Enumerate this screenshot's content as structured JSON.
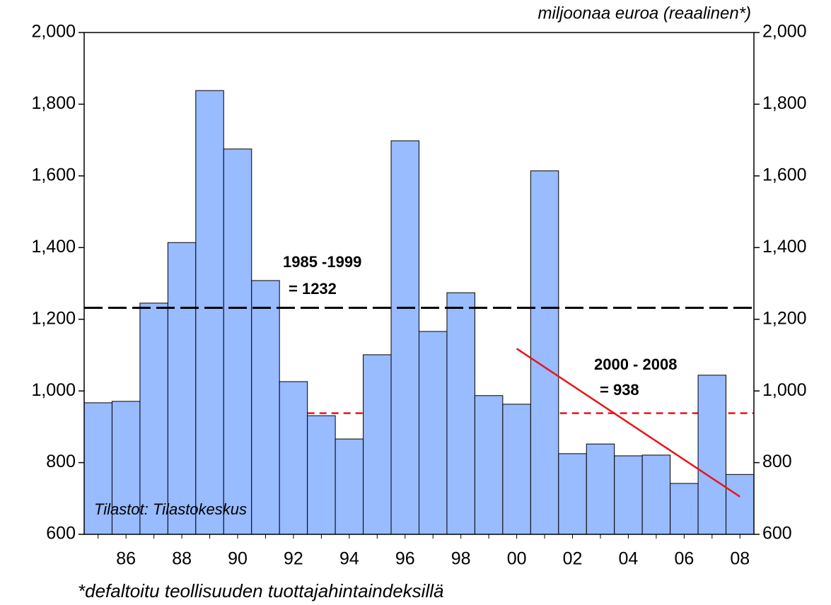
{
  "chart_data": {
    "type": "bar",
    "unit_label": "miljoonaa euroa (reaalinen*)",
    "footnote": "*defaltoitu teollisuuden tuottajahintaindeksillä",
    "source": "Tilastot: Tilastokeskus",
    "categories": [
      null,
      "86",
      null,
      "88",
      null,
      "90",
      null,
      "92",
      null,
      "94",
      null,
      "96",
      null,
      "98",
      null,
      "00",
      null,
      "02",
      null,
      "04",
      null,
      "06",
      null,
      "08"
    ],
    "values": [
      967,
      971,
      1245,
      1414,
      1838,
      1675,
      1308,
      1026,
      931,
      866,
      1101,
      1698,
      1166,
      1274,
      987,
      963,
      1614,
      825,
      852,
      819,
      821,
      742,
      1044,
      767
    ],
    "color": "#99bbff",
    "ylim": [
      600,
      2000
    ],
    "yticks": [
      600,
      800,
      {
        "value": 1000,
        "label": "1,000"
      },
      {
        "value": 1200,
        "label": "1,200"
      },
      {
        "value": 1400,
        "label": "1,400"
      },
      {
        "value": 1600,
        "label": "1,600"
      },
      {
        "value": 1800,
        "label": "1,800"
      },
      {
        "value": 2000,
        "label": "2,000"
      }
    ],
    "y2lim": [
      600,
      2000
    ],
    "y2ticks": [
      600,
      800,
      {
        "value": 1000,
        "label": "1,000"
      },
      {
        "value": 1200,
        "label": "1,200"
      },
      {
        "value": 1400,
        "label": "1,400"
      },
      {
        "value": 1600,
        "label": "1,600"
      },
      {
        "value": 1800,
        "label": "1,800"
      },
      {
        "value": 2000,
        "label": "2,000"
      }
    ],
    "reference_lines": [
      {
        "value": 1232,
        "color": "#000000",
        "label": [
          "1985 -1999",
          "= 1232"
        ]
      },
      {
        "value": 938,
        "color": "#e8141b",
        "label": [
          "2000 - 2008",
          "= 938"
        ]
      }
    ],
    "trend_line": {
      "values": [
        1118,
        705
      ],
      "color": "#e8141b"
    }
  }
}
